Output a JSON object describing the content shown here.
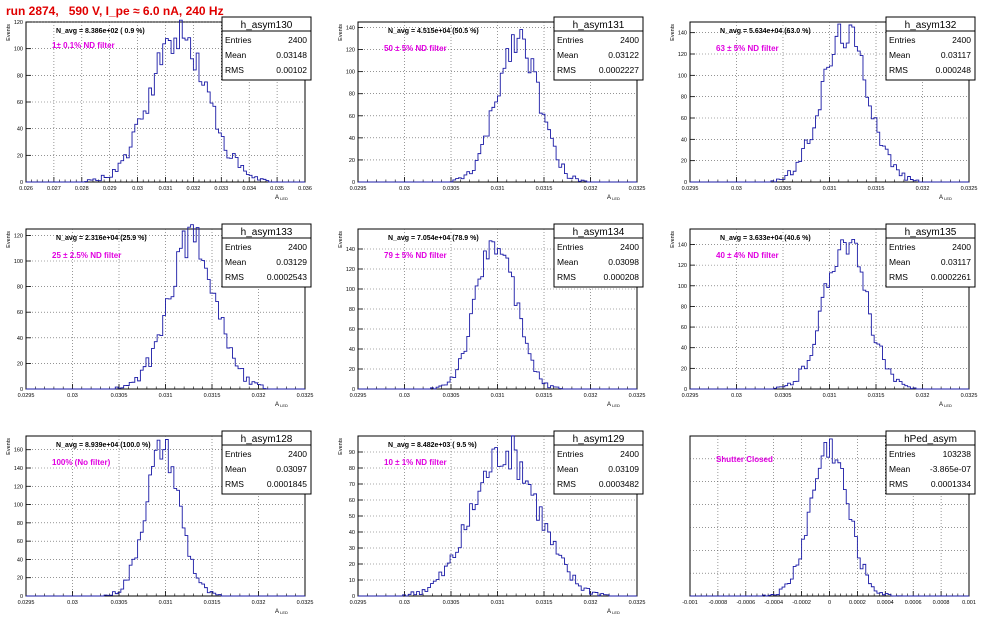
{
  "page": {
    "title": "run 2874,   590 V, I_pe ≈ 6.0 nA, 240 Hz"
  },
  "colors": {
    "histogram": "#1a1aa6",
    "note": "#e000e0",
    "title": "#e00000",
    "grid": "#555555"
  },
  "chart_data": [
    {
      "type": "bar",
      "name": "h_asym130",
      "ylabel": "Events",
      "xlabel": "A",
      "xlabel_sub": "LED",
      "navg": "N_avg = 8.386e+02 ( 0.9 %)",
      "note": "1± 0.1% ND filter",
      "stats": {
        "entries": "2400",
        "mean": "0.03148",
        "rms": "0.00102"
      },
      "xlim": [
        0.026,
        0.036
      ],
      "ylim": [
        0,
        120
      ],
      "xticks": [
        "0.026",
        "0.027",
        "0.028",
        "0.029",
        "0.03",
        "0.031",
        "0.032",
        "0.033",
        "0.034",
        "0.035",
        "0.036"
      ],
      "yticks": [
        "0",
        "20",
        "40",
        "60",
        "80",
        "100",
        "120"
      ],
      "mean": 0.03148,
      "sigma": 0.00102,
      "peak": 110,
      "seed": 130
    },
    {
      "type": "bar",
      "name": "h_asym131",
      "ylabel": "Events",
      "xlabel": "A",
      "xlabel_sub": "LED",
      "navg": "N_avg = 4.515e+04 (50.5 %)",
      "note": "50 ± 5% ND filter",
      "stats": {
        "entries": "2400",
        "mean": "0.03122",
        "rms": "0.0002227"
      },
      "xlim": [
        0.0295,
        0.0325
      ],
      "ylim": [
        0,
        145
      ],
      "xticks": [
        "0.0295",
        "0.03",
        "0.0305",
        "0.031",
        "0.0315",
        "0.032",
        "0.0325"
      ],
      "yticks": [
        "0",
        "20",
        "40",
        "60",
        "80",
        "100",
        "120",
        "140"
      ],
      "mean": 0.03122,
      "sigma": 0.0002227,
      "peak": 132,
      "seed": 131
    },
    {
      "type": "bar",
      "name": "h_asym132",
      "ylabel": "Events",
      "xlabel": "A",
      "xlabel_sub": "LED",
      "navg": "N_avg = 5.634e+04 (63.0 %)",
      "note": "63 ± 5% ND filter",
      "stats": {
        "entries": "2400",
        "mean": "0.03117",
        "rms": "0.000248"
      },
      "xlim": [
        0.0295,
        0.0325
      ],
      "ylim": [
        0,
        150
      ],
      "xticks": [
        "0.0295",
        "0.03",
        "0.0305",
        "0.031",
        "0.0315",
        "0.032",
        "0.0325"
      ],
      "yticks": [
        "0",
        "20",
        "40",
        "60",
        "80",
        "100",
        "120",
        "140"
      ],
      "mean": 0.03117,
      "sigma": 0.000248,
      "peak": 140,
      "seed": 132
    },
    {
      "type": "bar",
      "name": "h_asym133",
      "ylabel": "Events",
      "xlabel": "A",
      "xlabel_sub": "LED",
      "navg": "N_avg = 2.316e+04 (25.9 %)",
      "note": "25 ± 2.5% ND filter",
      "stats": {
        "entries": "2400",
        "mean": "0.03129",
        "rms": "0.0002543"
      },
      "xlim": [
        0.0295,
        0.0325
      ],
      "ylim": [
        0,
        125
      ],
      "xticks": [
        "0.0295",
        "0.03",
        "0.0305",
        "0.031",
        "0.0315",
        "0.032",
        "0.0325"
      ],
      "yticks": [
        "0",
        "20",
        "40",
        "60",
        "80",
        "100",
        "120"
      ],
      "mean": 0.03129,
      "sigma": 0.0002543,
      "peak": 118,
      "seed": 133
    },
    {
      "type": "bar",
      "name": "h_asym134",
      "ylabel": "Events",
      "xlabel": "A",
      "xlabel_sub": "LED",
      "navg": "N_avg = 7.054e+04 (78.9 %)",
      "note": "79 ± 5% ND filter",
      "stats": {
        "entries": "2400",
        "mean": "0.03098",
        "rms": "0.000208"
      },
      "xlim": [
        0.0295,
        0.0325
      ],
      "ylim": [
        0,
        160
      ],
      "xticks": [
        "0.0295",
        "0.03",
        "0.0305",
        "0.031",
        "0.0315",
        "0.032",
        "0.0325"
      ],
      "yticks": [
        "0",
        "20",
        "40",
        "60",
        "80",
        "100",
        "120",
        "140"
      ],
      "mean": 0.03098,
      "sigma": 0.000208,
      "peak": 150,
      "seed": 134
    },
    {
      "type": "bar",
      "name": "h_asym135",
      "ylabel": "Events",
      "xlabel": "A",
      "xlabel_sub": "LED",
      "navg": "N_avg = 3.633e+04 (40.6 %)",
      "note": "40 ± 4% ND filter",
      "stats": {
        "entries": "2400",
        "mean": "0.03117",
        "rms": "0.0002261"
      },
      "xlim": [
        0.0295,
        0.0325
      ],
      "ylim": [
        0,
        155
      ],
      "xticks": [
        "0.0295",
        "0.03",
        "0.0305",
        "0.031",
        "0.0315",
        "0.032",
        "0.0325"
      ],
      "yticks": [
        "0",
        "20",
        "40",
        "60",
        "80",
        "100",
        "120",
        "140"
      ],
      "mean": 0.03117,
      "sigma": 0.0002261,
      "peak": 145,
      "seed": 135
    },
    {
      "type": "bar",
      "name": "h_asym128",
      "ylabel": "Events",
      "xlabel": "A",
      "xlabel_sub": "LED",
      "navg": "N_avg = 8.939e+04 (100.0 %)",
      "note": "100% (No filter)",
      "stats": {
        "entries": "2400",
        "mean": "0.03097",
        "rms": "0.0001845"
      },
      "xlim": [
        0.0295,
        0.0325
      ],
      "ylim": [
        0,
        175
      ],
      "xticks": [
        "0.0295",
        "0.03",
        "0.0305",
        "0.031",
        "0.0315",
        "0.032",
        "0.0325"
      ],
      "yticks": [
        "0",
        "20",
        "40",
        "60",
        "80",
        "100",
        "120",
        "140",
        "160"
      ],
      "mean": 0.03097,
      "sigma": 0.0001845,
      "peak": 162,
      "seed": 128
    },
    {
      "type": "bar",
      "name": "h_asym129",
      "ylabel": "Events",
      "xlabel": "A",
      "xlabel_sub": "LED",
      "navg": "N_avg = 8.482e+03 ( 9.5 %)",
      "note": "10 ± 1% ND filter",
      "stats": {
        "entries": "2400",
        "mean": "0.03109",
        "rms": "0.0003482"
      },
      "xlim": [
        0.0295,
        0.0325
      ],
      "ylim": [
        0,
        100
      ],
      "xticks": [
        "0.0295",
        "0.03",
        "0.0305",
        "0.031",
        "0.0315",
        "0.032",
        "0.0325"
      ],
      "yticks": [
        "0",
        "10",
        "20",
        "30",
        "40",
        "50",
        "60",
        "70",
        "80",
        "90"
      ],
      "mean": 0.03109,
      "sigma": 0.0003482,
      "peak": 90,
      "seed": 129
    },
    {
      "type": "bar",
      "name": "hPed_asym",
      "ylabel": "",
      "xlabel": "",
      "xlabel_sub": "",
      "navg": "",
      "note": "Shutter Closed",
      "stats": {
        "entries": "103238",
        "mean": "-3.865e-07",
        "rms": "0.0001334"
      },
      "xlim": [
        -0.001,
        0.001
      ],
      "ylim": [
        0,
        6200
      ],
      "xticks": [
        "-0.001",
        "-0.0008",
        "-0.0006",
        "-0.0004",
        "-0.0002",
        "0",
        "0.0002",
        "0.0004",
        "0.0006",
        "0.0008",
        "0.001"
      ],
      "yticks": [],
      "mean": 0.0,
      "sigma": 0.0001334,
      "peak": 5800,
      "seed": 999
    }
  ]
}
